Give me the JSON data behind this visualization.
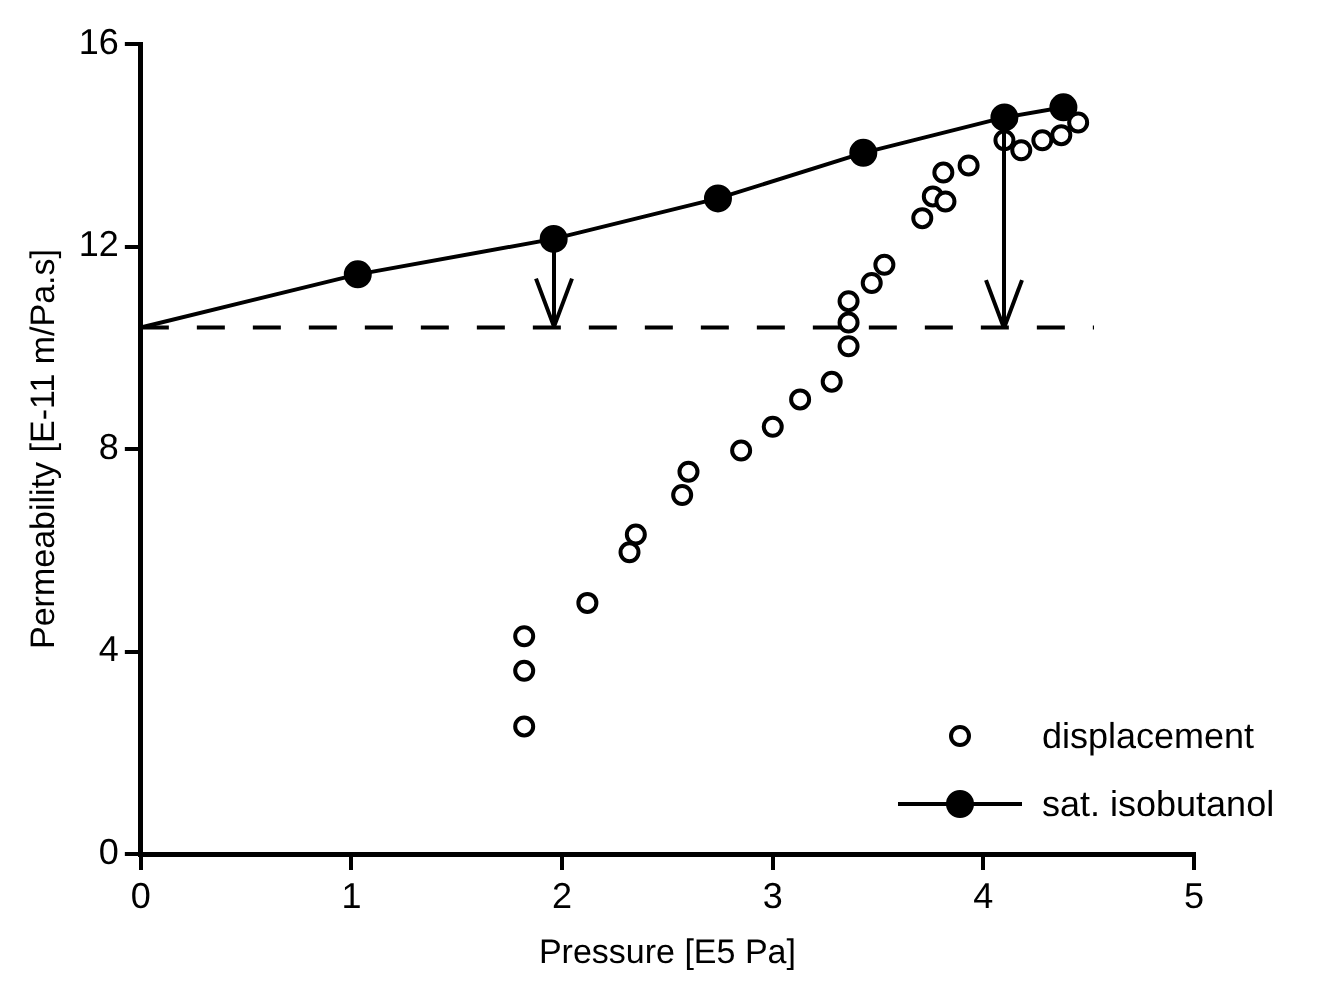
{
  "chart_data": {
    "type": "scatter",
    "xlabel": "Pressure [E5 Pa]",
    "ylabel": "Permeability [E-11 m/Pa.s]",
    "xlim": [
      0,
      5
    ],
    "xticks": [
      0,
      1,
      2,
      3,
      4,
      5
    ],
    "ylim": [
      0,
      16
    ],
    "yticks": [
      0,
      4,
      8,
      12,
      16
    ],
    "grid": false,
    "legend": "bottom right",
    "marker": "circle",
    "series": [
      {
        "name": "displacement",
        "color": "#000000",
        "x": [
          1.82,
          1.82,
          1.82,
          2.12,
          2.32,
          2.35,
          2.57,
          2.6,
          2.85,
          3.0,
          3.13,
          3.28,
          3.36,
          3.36,
          3.36,
          3.47,
          3.53,
          3.71,
          3.76,
          3.82,
          3.81,
          3.93,
          4.1,
          4.18,
          4.28,
          4.37,
          4.45
        ],
        "values": [
          4.3,
          3.62,
          2.52,
          4.96,
          5.96,
          6.31,
          7.09,
          7.55,
          7.97,
          8.44,
          8.98,
          9.33,
          10.03,
          10.5,
          10.92,
          11.28,
          11.64,
          12.56,
          12.99,
          12.89,
          13.46,
          13.6,
          14.1,
          13.9,
          14.1,
          14.2,
          14.45
        ]
      },
      {
        "name": "sat. isobutanol",
        "type": "line",
        "color": "#000000",
        "x": [
          1.03,
          1.96,
          2.74,
          3.43,
          4.1,
          4.38
        ],
        "values": [
          11.45,
          12.15,
          12.95,
          13.85,
          14.55,
          14.75
        ]
      },
      {
        "type": "line",
        "marker": "none",
        "color": "#000000",
        "x": [
          0,
          1.03
        ],
        "values": [
          10.4,
          11.45
        ]
      }
    ],
    "ref_lines": [
      {
        "axis": "y",
        "value": 10.4,
        "line_style": "dashed",
        "color": "#000000"
      }
    ]
  }
}
